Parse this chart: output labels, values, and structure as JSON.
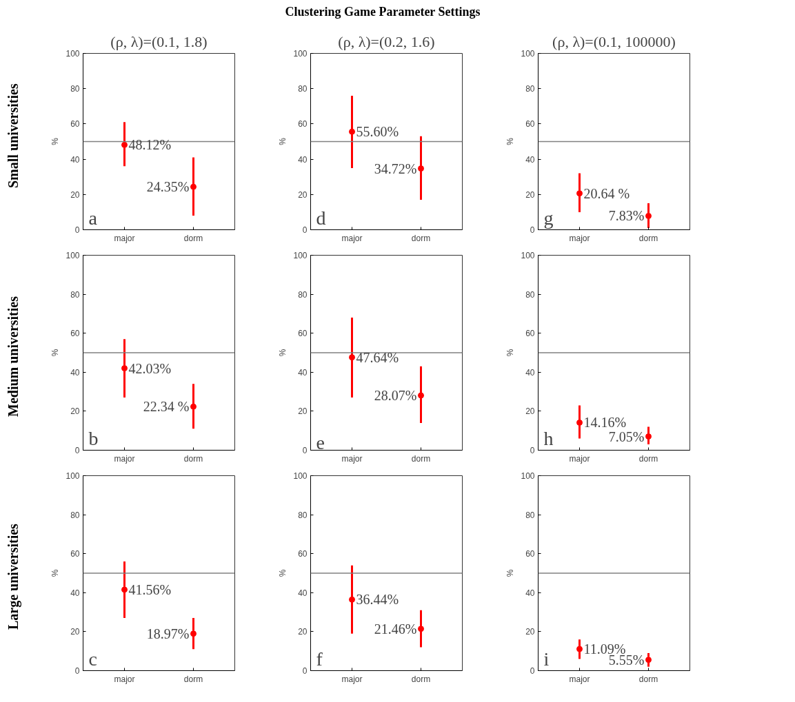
{
  "chart_data": [
    {
      "type": "scatter",
      "title": "(ρ, λ)=(0.1, 1.8)",
      "ylabel": "%",
      "categories": [
        "major",
        "dorm"
      ],
      "values": [
        48.12,
        24.35
      ],
      "errors": [
        [
          36,
          61
        ],
        [
          8,
          41
        ]
      ],
      "value_labels": [
        "48.12%",
        "24.35%"
      ],
      "color": "#ff0000",
      "marker": "circle",
      "ylim": [
        0,
        100
      ],
      "yticks": [
        0,
        20,
        40,
        60,
        80,
        100
      ],
      "ref_lines": [
        {
          "axis": "y",
          "value": 50,
          "color": "#808080"
        }
      ],
      "grid": false,
      "annotations": [
        "a",
        "Small universities",
        "Clustering Game Parameter Settings"
      ]
    },
    {
      "type": "scatter",
      "title": "(ρ, λ)=(0.2, 1.6)",
      "ylabel": "%",
      "categories": [
        "major",
        "dorm"
      ],
      "values": [
        55.6,
        34.72
      ],
      "errors": [
        [
          35,
          76
        ],
        [
          17,
          53
        ]
      ],
      "value_labels": [
        "55.60%",
        "34.72%"
      ],
      "color": "#ff0000",
      "marker": "circle",
      "ylim": [
        0,
        100
      ],
      "yticks": [
        0,
        20,
        40,
        60,
        80,
        100
      ],
      "ref_lines": [
        {
          "axis": "y",
          "value": 50,
          "color": "#808080"
        }
      ],
      "grid": false,
      "annotations": [
        "d"
      ]
    },
    {
      "type": "scatter",
      "title": "(ρ, λ)=(0.1, 100000)",
      "ylabel": "%",
      "categories": [
        "major",
        "dorm"
      ],
      "values": [
        20.64,
        7.83
      ],
      "errors": [
        [
          10,
          32
        ],
        [
          1,
          15
        ]
      ],
      "value_labels": [
        "20.64 %",
        "7.83%"
      ],
      "color": "#ff0000",
      "marker": "circle",
      "ylim": [
        0,
        100
      ],
      "yticks": [
        0,
        20,
        40,
        60,
        80,
        100
      ],
      "ref_lines": [
        {
          "axis": "y",
          "value": 50,
          "color": "#808080"
        }
      ],
      "grid": false,
      "annotations": [
        "g"
      ]
    },
    {
      "type": "scatter",
      "ylabel": "%",
      "categories": [
        "major",
        "dorm"
      ],
      "values": [
        42.03,
        22.34
      ],
      "errors": [
        [
          27,
          57
        ],
        [
          11,
          34
        ]
      ],
      "value_labels": [
        "42.03%",
        "22.34 %"
      ],
      "color": "#ff0000",
      "marker": "circle",
      "ylim": [
        0,
        100
      ],
      "yticks": [
        0,
        20,
        40,
        60,
        80,
        100
      ],
      "ref_lines": [
        {
          "axis": "y",
          "value": 50,
          "color": "#808080"
        }
      ],
      "grid": false,
      "annotations": [
        "b",
        "Medium universities"
      ]
    },
    {
      "type": "scatter",
      "ylabel": "%",
      "categories": [
        "major",
        "dorm"
      ],
      "values": [
        47.64,
        28.07
      ],
      "errors": [
        [
          27,
          68
        ],
        [
          14,
          43
        ]
      ],
      "value_labels": [
        "47.64%",
        "28.07%"
      ],
      "color": "#ff0000",
      "marker": "circle",
      "ylim": [
        0,
        100
      ],
      "yticks": [
        0,
        20,
        40,
        60,
        80,
        100
      ],
      "ref_lines": [
        {
          "axis": "y",
          "value": 50,
          "color": "#808080"
        }
      ],
      "grid": false,
      "annotations": [
        "e"
      ]
    },
    {
      "type": "scatter",
      "ylabel": "%",
      "categories": [
        "major",
        "dorm"
      ],
      "values": [
        14.16,
        7.05
      ],
      "errors": [
        [
          6,
          23
        ],
        [
          3,
          12
        ]
      ],
      "value_labels": [
        "14.16%",
        "7.05%"
      ],
      "color": "#ff0000",
      "marker": "circle",
      "ylim": [
        0,
        100
      ],
      "yticks": [
        0,
        20,
        40,
        60,
        80,
        100
      ],
      "ref_lines": [
        {
          "axis": "y",
          "value": 50,
          "color": "#808080"
        }
      ],
      "grid": false,
      "annotations": [
        "h"
      ]
    },
    {
      "type": "scatter",
      "ylabel": "%",
      "categories": [
        "major",
        "dorm"
      ],
      "values": [
        41.56,
        18.97
      ],
      "errors": [
        [
          27,
          56
        ],
        [
          11,
          27
        ]
      ],
      "value_labels": [
        "41.56%",
        "18.97%"
      ],
      "color": "#ff0000",
      "marker": "circle",
      "ylim": [
        0,
        100
      ],
      "yticks": [
        0,
        20,
        40,
        60,
        80,
        100
      ],
      "ref_lines": [
        {
          "axis": "y",
          "value": 50,
          "color": "#808080"
        }
      ],
      "grid": false,
      "annotations": [
        "c",
        "Large universities"
      ]
    },
    {
      "type": "scatter",
      "ylabel": "%",
      "categories": [
        "major",
        "dorm"
      ],
      "values": [
        36.44,
        21.46
      ],
      "errors": [
        [
          19,
          54
        ],
        [
          12,
          31
        ]
      ],
      "value_labels": [
        "36.44%",
        "21.46%"
      ],
      "color": "#ff0000",
      "marker": "circle",
      "ylim": [
        0,
        100
      ],
      "yticks": [
        0,
        20,
        40,
        60,
        80,
        100
      ],
      "ref_lines": [
        {
          "axis": "y",
          "value": 50,
          "color": "#808080"
        }
      ],
      "grid": false,
      "annotations": [
        "f"
      ]
    },
    {
      "type": "scatter",
      "ylabel": "%",
      "categories": [
        "major",
        "dorm"
      ],
      "values": [
        11.09,
        5.55
      ],
      "errors": [
        [
          6,
          16
        ],
        [
          2,
          9
        ]
      ],
      "value_labels": [
        "11.09%",
        "5.55%"
      ],
      "color": "#ff0000",
      "marker": "circle",
      "ylim": [
        0,
        100
      ],
      "yticks": [
        0,
        20,
        40,
        60,
        80,
        100
      ],
      "ref_lines": [
        {
          "axis": "y",
          "value": 50,
          "color": "#808080"
        }
      ],
      "grid": false,
      "annotations": [
        "i"
      ]
    }
  ]
}
